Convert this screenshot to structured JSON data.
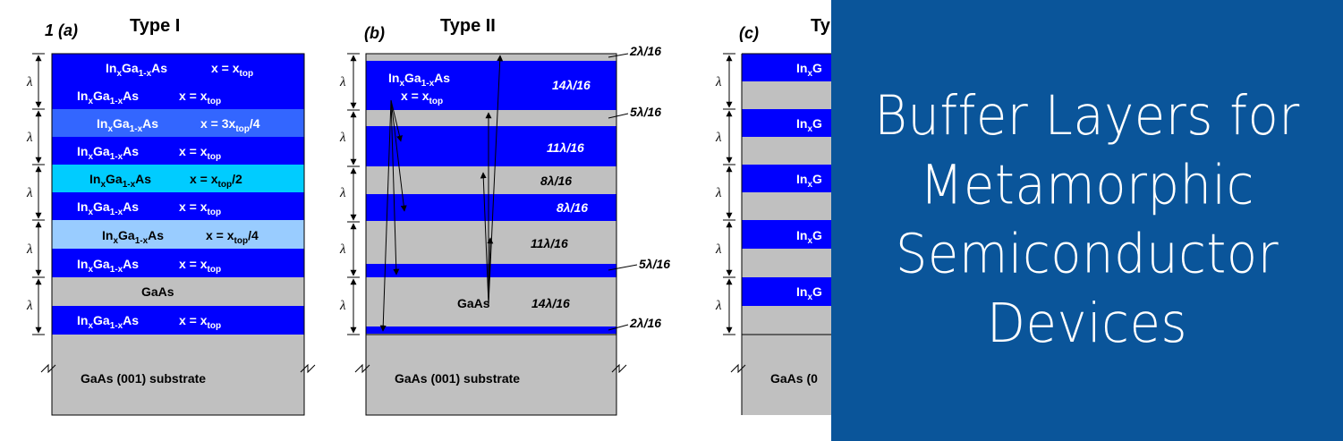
{
  "overlay": {
    "title_lines": [
      "Buffer Layers for",
      "Metamorphic",
      "Semiconductor",
      "Devices"
    ],
    "background_color": "#0a559a"
  },
  "diagram": {
    "panel_a": {
      "letter": "1 (a)",
      "title": "Type I",
      "layers": [
        {
          "label": "InxGa1-xAs",
          "x": "x = xtop",
          "color": "#0000ff"
        },
        {
          "label": "InxGa1-xAs",
          "x": "x = xtop",
          "color": "#0000ff"
        },
        {
          "label": "InxGa1-xAs",
          "x": "x = 3xtop/4",
          "color": "#3366ff"
        },
        {
          "label": "InxGa1-xAs",
          "x": "x = xtop",
          "color": "#0000ff"
        },
        {
          "label": "InxGa1-xAs",
          "x": "x = xtop/2",
          "color": "#00ccff"
        },
        {
          "label": "InxGa1-xAs",
          "x": "x = xtop",
          "color": "#0000ff"
        },
        {
          "label": "InxGa1-xAs",
          "x": "x = xtop/4",
          "color": "#99ccff"
        },
        {
          "label": "InxGa1-xAs",
          "x": "x = xtop",
          "color": "#0000ff"
        },
        {
          "label": "GaAs",
          "x": "",
          "color": "#c0c0c0"
        },
        {
          "label": "InxGa1-xAs",
          "x": "x = xtop",
          "color": "#0000ff"
        }
      ],
      "period_label": "λ",
      "substrate": "GaAs (001) substrate"
    },
    "panel_b": {
      "letter": "(b)",
      "title": "Type II",
      "top_layer": {
        "label": "InxGa1-xAs",
        "x": "x = xtop"
      },
      "gaas_label": "GaAs",
      "thickness_labels": [
        "2λ/16",
        "14λ/16",
        "5λ/16",
        "11λ/16",
        "8λ/16",
        "8λ/16",
        "11λ/16",
        "5λ/16",
        "14λ/16",
        "2λ/16"
      ],
      "period_label": "λ",
      "substrate": "GaAs (001) substrate"
    },
    "panel_c": {
      "letter": "(c)",
      "title_partial": "Ty",
      "layer_partials": [
        "InxG",
        "InxG",
        "InxG",
        "InxG",
        "InxG"
      ],
      "period_label": "λ",
      "substrate_partial": "GaAs (0"
    },
    "colors": {
      "blue": "#0000ff",
      "gray": "#c0c0c0",
      "medium_blue": "#3366ff",
      "cyan": "#00ccff",
      "light_blue": "#99ccff"
    }
  }
}
